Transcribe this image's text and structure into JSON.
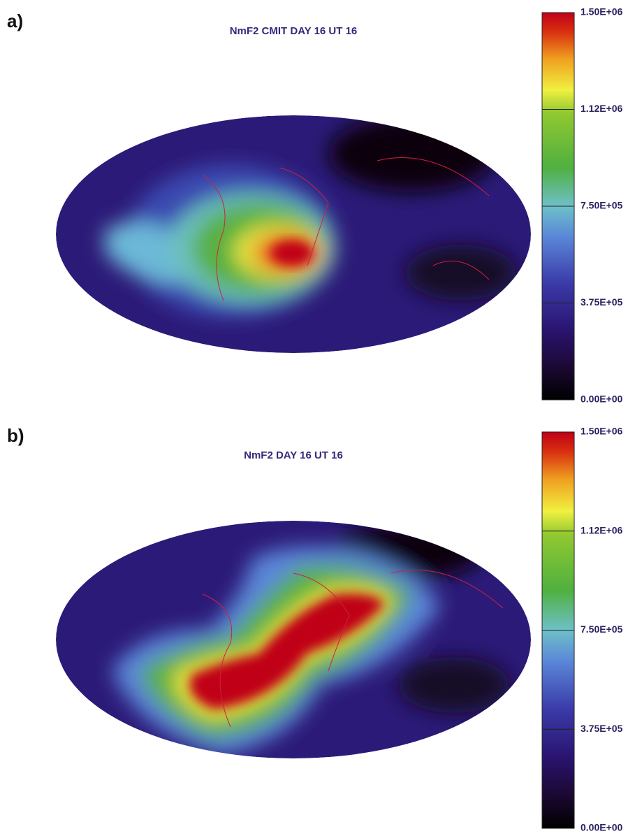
{
  "panels": [
    {
      "label": "a)",
      "title": "NmF2 CMIT DAY 16 UT 16",
      "colorbar": {
        "range": [
          0,
          1500000
        ],
        "ticks": [
          {
            "value": 1500000,
            "label": "1.50E+06"
          },
          {
            "value": 1125000,
            "label": "1.12E+06"
          },
          {
            "value": 750000,
            "label": "7.50E+05"
          },
          {
            "value": 375000,
            "label": "3.75E+05"
          },
          {
            "value": 0,
            "label": "0.00E+00"
          }
        ]
      }
    },
    {
      "label": "b)",
      "title": "NmF2 DAY 16 UT 16",
      "colorbar": {
        "range": [
          0,
          1500000
        ],
        "ticks": [
          {
            "value": 1500000,
            "label": "1.50E+06"
          },
          {
            "value": 1125000,
            "label": "1.12E+06"
          },
          {
            "value": 750000,
            "label": "7.50E+05"
          },
          {
            "value": 375000,
            "label": "3.75E+05"
          },
          {
            "value": 0,
            "label": "0.00E+00"
          }
        ]
      }
    }
  ]
}
